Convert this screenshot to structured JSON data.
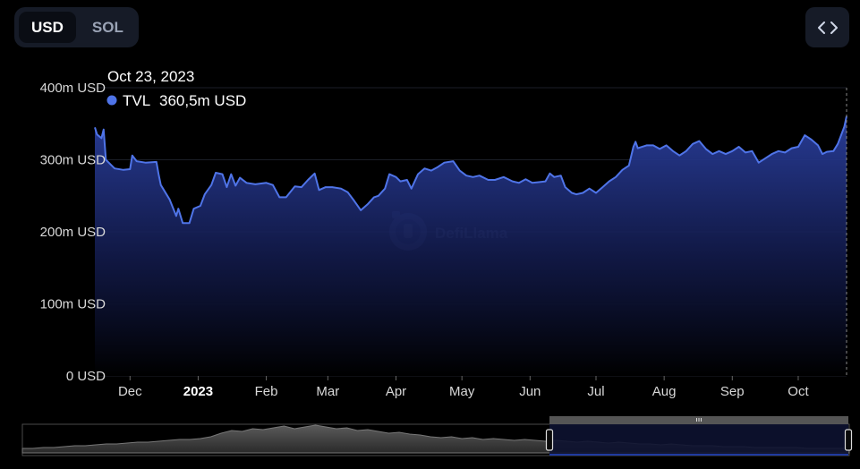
{
  "currency_toggle": {
    "options": [
      "USD",
      "SOL"
    ],
    "selected": "USD"
  },
  "embed_icon": "code-brackets-icon",
  "tooltip": {
    "date": "Oct 23, 2023",
    "series": "TVL",
    "value": "360,5m USD",
    "marker_color": "#4f74e8"
  },
  "watermark": {
    "text": "DefiLlama",
    "icon": "llama-logo-icon"
  },
  "colors": {
    "line": "#4f74e8",
    "area_top": "#2a3f9e",
    "background": "#000000",
    "grid": "#1b1e27"
  },
  "chart_data": {
    "type": "area",
    "title": "",
    "xlabel": "",
    "ylabel": "",
    "ylim": [
      0,
      400
    ],
    "y_unit": "m USD",
    "y_ticks": [
      {
        "v": 0,
        "label": "0 USD"
      },
      {
        "v": 100,
        "label": "100m USD"
      },
      {
        "v": 200,
        "label": "200m USD"
      },
      {
        "v": 300,
        "label": "300m USD"
      },
      {
        "v": 400,
        "label": "400m USD"
      }
    ],
    "x_ticks": [
      {
        "date": "2022-12-01",
        "label": "Dec",
        "bold": false
      },
      {
        "date": "2023-01-01",
        "label": "2023",
        "bold": true
      },
      {
        "date": "2023-02-01",
        "label": "Feb",
        "bold": false
      },
      {
        "date": "2023-03-01",
        "label": "Mar",
        "bold": false
      },
      {
        "date": "2023-04-01",
        "label": "Apr",
        "bold": false
      },
      {
        "date": "2023-05-01",
        "label": "May",
        "bold": false
      },
      {
        "date": "2023-06-01",
        "label": "Jun",
        "bold": false
      },
      {
        "date": "2023-07-01",
        "label": "Jul",
        "bold": false
      },
      {
        "date": "2023-08-01",
        "label": "Aug",
        "bold": false
      },
      {
        "date": "2023-09-01",
        "label": "Sep",
        "bold": false
      },
      {
        "date": "2023-10-01",
        "label": "Oct",
        "bold": false
      }
    ],
    "series": [
      {
        "name": "TVL",
        "points": [
          [
            "2022-11-15",
            345
          ],
          [
            "2022-11-16",
            335
          ],
          [
            "2022-11-18",
            330
          ],
          [
            "2022-11-19",
            342
          ],
          [
            "2022-11-20",
            300
          ],
          [
            "2022-11-24",
            288
          ],
          [
            "2022-11-28",
            286
          ],
          [
            "2022-12-01",
            287
          ],
          [
            "2022-12-02",
            306
          ],
          [
            "2022-12-04",
            298
          ],
          [
            "2022-12-08",
            296
          ],
          [
            "2022-12-13",
            297
          ],
          [
            "2022-12-14",
            280
          ],
          [
            "2022-12-15",
            265
          ],
          [
            "2022-12-19",
            245
          ],
          [
            "2022-12-22",
            222
          ],
          [
            "2022-12-23",
            232
          ],
          [
            "2022-12-25",
            212
          ],
          [
            "2022-12-28",
            212
          ],
          [
            "2022-12-30",
            232
          ],
          [
            "2023-01-02",
            236
          ],
          [
            "2023-01-04",
            252
          ],
          [
            "2023-01-07",
            265
          ],
          [
            "2023-01-09",
            282
          ],
          [
            "2023-01-12",
            280
          ],
          [
            "2023-01-14",
            262
          ],
          [
            "2023-01-16",
            280
          ],
          [
            "2023-01-18",
            264
          ],
          [
            "2023-01-20",
            275
          ],
          [
            "2023-01-23",
            268
          ],
          [
            "2023-01-27",
            266
          ],
          [
            "2023-02-01",
            268
          ],
          [
            "2023-02-04",
            265
          ],
          [
            "2023-02-07",
            248
          ],
          [
            "2023-02-10",
            248
          ],
          [
            "2023-02-14",
            263
          ],
          [
            "2023-02-17",
            262
          ],
          [
            "2023-02-20",
            272
          ],
          [
            "2023-02-23",
            281
          ],
          [
            "2023-02-25",
            258
          ],
          [
            "2023-02-28",
            262
          ],
          [
            "2023-03-03",
            262
          ],
          [
            "2023-03-07",
            260
          ],
          [
            "2023-03-10",
            255
          ],
          [
            "2023-03-13",
            243
          ],
          [
            "2023-03-16",
            230
          ],
          [
            "2023-03-19",
            238
          ],
          [
            "2023-03-22",
            248
          ],
          [
            "2023-03-24",
            250
          ],
          [
            "2023-03-27",
            260
          ],
          [
            "2023-03-29",
            280
          ],
          [
            "2023-04-01",
            276
          ],
          [
            "2023-04-03",
            270
          ],
          [
            "2023-04-06",
            272
          ],
          [
            "2023-04-08",
            260
          ],
          [
            "2023-04-11",
            280
          ],
          [
            "2023-04-14",
            288
          ],
          [
            "2023-04-17",
            285
          ],
          [
            "2023-04-20",
            290
          ],
          [
            "2023-04-23",
            296
          ],
          [
            "2023-04-27",
            298
          ],
          [
            "2023-04-30",
            285
          ],
          [
            "2023-05-03",
            278
          ],
          [
            "2023-05-06",
            276
          ],
          [
            "2023-05-09",
            278
          ],
          [
            "2023-05-13",
            272
          ],
          [
            "2023-05-16",
            272
          ],
          [
            "2023-05-20",
            276
          ],
          [
            "2023-05-24",
            270
          ],
          [
            "2023-05-27",
            268
          ],
          [
            "2023-05-30",
            273
          ],
          [
            "2023-06-02",
            268
          ],
          [
            "2023-06-05",
            269
          ],
          [
            "2023-06-08",
            270
          ],
          [
            "2023-06-10",
            281
          ],
          [
            "2023-06-12",
            276
          ],
          [
            "2023-06-15",
            278
          ],
          [
            "2023-06-17",
            262
          ],
          [
            "2023-06-20",
            254
          ],
          [
            "2023-06-22",
            252
          ],
          [
            "2023-06-25",
            254
          ],
          [
            "2023-06-28",
            260
          ],
          [
            "2023-07-01",
            254
          ],
          [
            "2023-07-04",
            262
          ],
          [
            "2023-07-07",
            270
          ],
          [
            "2023-07-10",
            276
          ],
          [
            "2023-07-13",
            286
          ],
          [
            "2023-07-16",
            292
          ],
          [
            "2023-07-18",
            318
          ],
          [
            "2023-07-19",
            325
          ],
          [
            "2023-07-20",
            316
          ],
          [
            "2023-07-24",
            320
          ],
          [
            "2023-07-27",
            320
          ],
          [
            "2023-07-30",
            315
          ],
          [
            "2023-08-02",
            320
          ],
          [
            "2023-08-05",
            312
          ],
          [
            "2023-08-08",
            306
          ],
          [
            "2023-08-11",
            312
          ],
          [
            "2023-08-14",
            322
          ],
          [
            "2023-08-17",
            326
          ],
          [
            "2023-08-20",
            315
          ],
          [
            "2023-08-23",
            308
          ],
          [
            "2023-08-26",
            312
          ],
          [
            "2023-08-29",
            308
          ],
          [
            "2023-09-01",
            312
          ],
          [
            "2023-09-04",
            318
          ],
          [
            "2023-09-07",
            310
          ],
          [
            "2023-09-10",
            312
          ],
          [
            "2023-09-13",
            296
          ],
          [
            "2023-09-16",
            302
          ],
          [
            "2023-09-19",
            308
          ],
          [
            "2023-09-22",
            312
          ],
          [
            "2023-09-25",
            310
          ],
          [
            "2023-09-28",
            316
          ],
          [
            "2023-10-01",
            318
          ],
          [
            "2023-10-04",
            334
          ],
          [
            "2023-10-07",
            328
          ],
          [
            "2023-10-10",
            320
          ],
          [
            "2023-10-12",
            308
          ],
          [
            "2023-10-14",
            311
          ],
          [
            "2023-10-17",
            312
          ],
          [
            "2023-10-19",
            322
          ],
          [
            "2023-10-21",
            338
          ],
          [
            "2023-10-22",
            346
          ],
          [
            "2023-10-23",
            360.5
          ]
        ]
      }
    ],
    "grid": true,
    "hover_date": "2023-10-23"
  },
  "overview": {
    "brush_range": [
      "2022-11-15",
      "2023-10-23"
    ],
    "profile": [
      5,
      5,
      6,
      6,
      7,
      8,
      8,
      9,
      10,
      10,
      11,
      12,
      12,
      13,
      14,
      15,
      15,
      16,
      18,
      22,
      25,
      24,
      27,
      26,
      28,
      30,
      27,
      29,
      31,
      29,
      27,
      28,
      25,
      26,
      24,
      22,
      23,
      21,
      20,
      18,
      17,
      18,
      16,
      17,
      15,
      16,
      15,
      14,
      15,
      14,
      13,
      14,
      13,
      12,
      13,
      12,
      11,
      12,
      11,
      10,
      10,
      9,
      10,
      9,
      8,
      8,
      8,
      7,
      7,
      7,
      6,
      6,
      6,
      6,
      6,
      5,
      5,
      5,
      5,
      5
    ]
  }
}
